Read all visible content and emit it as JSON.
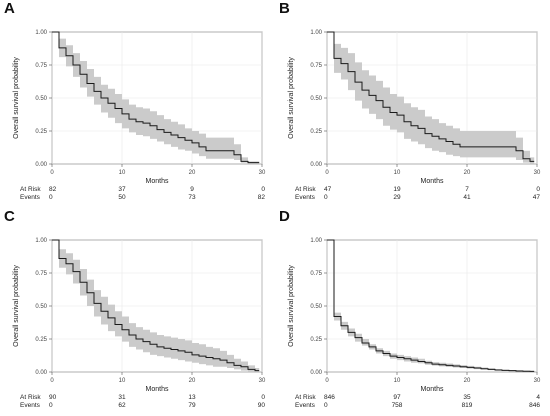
{
  "chart_data": [
    {
      "panel": "A",
      "type": "line",
      "xlabel": "Months",
      "ylabel": "Overall survival probability",
      "xlim": [
        0,
        30
      ],
      "ylim": [
        0,
        1
      ],
      "xticks": [
        "0",
        "10",
        "20",
        "30"
      ],
      "yticks": [
        "0.00",
        "0.25",
        "0.50",
        "0.75",
        "1.00"
      ],
      "grid": true,
      "x": [
        0,
        1,
        2,
        3,
        4,
        5,
        6,
        7,
        8,
        9,
        10,
        11,
        12,
        13,
        14,
        15,
        16,
        17,
        18,
        19,
        20,
        21,
        22,
        23,
        24,
        25,
        26,
        27,
        28,
        29
      ],
      "survival": [
        1.0,
        0.88,
        0.82,
        0.75,
        0.68,
        0.61,
        0.55,
        0.5,
        0.46,
        0.42,
        0.38,
        0.34,
        0.32,
        0.31,
        0.29,
        0.26,
        0.24,
        0.22,
        0.2,
        0.18,
        0.16,
        0.13,
        0.1,
        0.1,
        0.1,
        0.1,
        0.07,
        0.02,
        0.01,
        0.01
      ],
      "lower": [
        1.0,
        0.81,
        0.74,
        0.66,
        0.58,
        0.51,
        0.45,
        0.39,
        0.35,
        0.31,
        0.27,
        0.24,
        0.22,
        0.21,
        0.19,
        0.17,
        0.15,
        0.13,
        0.11,
        0.1,
        0.08,
        0.06,
        0.04,
        0.04,
        0.04,
        0.04,
        0.03,
        0.01,
        0.0,
        0.0
      ],
      "upper": [
        1.0,
        0.95,
        0.9,
        0.84,
        0.78,
        0.72,
        0.66,
        0.6,
        0.57,
        0.53,
        0.49,
        0.45,
        0.43,
        0.42,
        0.4,
        0.37,
        0.34,
        0.32,
        0.3,
        0.27,
        0.25,
        0.23,
        0.2,
        0.2,
        0.2,
        0.2,
        0.15,
        0.05,
        0.02,
        0.02
      ],
      "risk_table": {
        "rows": [
          "At Risk",
          "Events"
        ],
        "times": [
          0,
          10,
          20,
          30
        ],
        "at_risk": [
          "82",
          "37",
          "9",
          "0"
        ],
        "events": [
          "0",
          "50",
          "73",
          "82"
        ]
      }
    },
    {
      "panel": "B",
      "type": "line",
      "xlabel": "Months",
      "ylabel": "Overall survival probability",
      "xlim": [
        0,
        30
      ],
      "ylim": [
        0,
        1
      ],
      "xticks": [
        "0",
        "10",
        "20",
        "30"
      ],
      "yticks": [
        "0.00",
        "0.25",
        "0.50",
        "0.75",
        "1.00"
      ],
      "grid": true,
      "x": [
        0,
        1,
        2,
        3,
        4,
        5,
        6,
        7,
        8,
        9,
        10,
        11,
        12,
        13,
        14,
        15,
        16,
        17,
        18,
        19,
        20,
        21,
        22,
        23,
        24,
        25,
        26,
        27,
        28,
        29
      ],
      "survival": [
        1.0,
        0.8,
        0.76,
        0.7,
        0.62,
        0.56,
        0.52,
        0.48,
        0.43,
        0.39,
        0.37,
        0.32,
        0.29,
        0.27,
        0.23,
        0.21,
        0.19,
        0.17,
        0.15,
        0.13,
        0.13,
        0.13,
        0.13,
        0.13,
        0.13,
        0.13,
        0.13,
        0.1,
        0.04,
        0.02
      ],
      "lower": [
        1.0,
        0.69,
        0.64,
        0.56,
        0.48,
        0.42,
        0.38,
        0.34,
        0.29,
        0.26,
        0.24,
        0.19,
        0.17,
        0.15,
        0.12,
        0.1,
        0.09,
        0.07,
        0.06,
        0.05,
        0.05,
        0.05,
        0.05,
        0.05,
        0.05,
        0.05,
        0.05,
        0.03,
        0.01,
        0.0
      ],
      "upper": [
        1.0,
        0.91,
        0.88,
        0.84,
        0.77,
        0.71,
        0.67,
        0.63,
        0.58,
        0.53,
        0.51,
        0.46,
        0.43,
        0.41,
        0.36,
        0.34,
        0.31,
        0.29,
        0.27,
        0.25,
        0.25,
        0.25,
        0.25,
        0.25,
        0.25,
        0.25,
        0.25,
        0.2,
        0.1,
        0.05
      ],
      "risk_table": {
        "rows": [
          "At Risk",
          "Events"
        ],
        "times": [
          0,
          10,
          20,
          30
        ],
        "at_risk": [
          "47",
          "19",
          "7",
          "0"
        ],
        "events": [
          "0",
          "29",
          "41",
          "47"
        ]
      }
    },
    {
      "panel": "C",
      "type": "line",
      "xlabel": "Months",
      "ylabel": "Overall survival probability",
      "xlim": [
        0,
        30
      ],
      "ylim": [
        0,
        1
      ],
      "xticks": [
        "0",
        "10",
        "20",
        "30"
      ],
      "yticks": [
        "0.00",
        "0.25",
        "0.50",
        "0.75",
        "1.00"
      ],
      "grid": true,
      "x": [
        0,
        1,
        2,
        3,
        4,
        5,
        6,
        7,
        8,
        9,
        10,
        11,
        12,
        13,
        14,
        15,
        16,
        17,
        18,
        19,
        20,
        21,
        22,
        23,
        24,
        25,
        26,
        27,
        28,
        29
      ],
      "survival": [
        1.0,
        0.86,
        0.82,
        0.76,
        0.68,
        0.6,
        0.52,
        0.46,
        0.41,
        0.36,
        0.32,
        0.28,
        0.25,
        0.23,
        0.21,
        0.19,
        0.18,
        0.17,
        0.16,
        0.15,
        0.13,
        0.12,
        0.11,
        0.1,
        0.09,
        0.07,
        0.05,
        0.04,
        0.02,
        0.01
      ],
      "lower": [
        1.0,
        0.79,
        0.74,
        0.67,
        0.58,
        0.5,
        0.42,
        0.36,
        0.31,
        0.27,
        0.23,
        0.19,
        0.17,
        0.15,
        0.13,
        0.12,
        0.11,
        0.1,
        0.09,
        0.08,
        0.07,
        0.06,
        0.05,
        0.04,
        0.04,
        0.03,
        0.02,
        0.01,
        0.0,
        0.0
      ],
      "upper": [
        1.0,
        0.93,
        0.9,
        0.85,
        0.78,
        0.7,
        0.62,
        0.57,
        0.51,
        0.46,
        0.42,
        0.37,
        0.34,
        0.32,
        0.3,
        0.28,
        0.27,
        0.26,
        0.25,
        0.24,
        0.22,
        0.21,
        0.19,
        0.18,
        0.16,
        0.13,
        0.1,
        0.08,
        0.05,
        0.03
      ],
      "risk_table": {
        "rows": [
          "At Risk",
          "Events"
        ],
        "times": [
          0,
          10,
          20,
          30
        ],
        "at_risk": [
          "90",
          "31",
          "13",
          "0"
        ],
        "events": [
          "0",
          "62",
          "79",
          "90"
        ]
      }
    },
    {
      "panel": "D",
      "type": "line",
      "xlabel": "Months",
      "ylabel": "Overall survival probability",
      "xlim": [
        0,
        30
      ],
      "ylim": [
        0,
        1
      ],
      "xticks": [
        "0",
        "10",
        "20",
        "30"
      ],
      "yticks": [
        "0.00",
        "0.25",
        "0.50",
        "0.75",
        "1.00"
      ],
      "grid": true,
      "x": [
        0,
        1,
        2,
        3,
        4,
        5,
        6,
        7,
        8,
        9,
        10,
        11,
        12,
        13,
        14,
        15,
        16,
        17,
        18,
        19,
        20,
        21,
        22,
        23,
        24,
        25,
        26,
        27,
        28,
        29
      ],
      "survival": [
        1.0,
        0.42,
        0.35,
        0.3,
        0.26,
        0.22,
        0.19,
        0.16,
        0.14,
        0.12,
        0.11,
        0.1,
        0.09,
        0.08,
        0.07,
        0.06,
        0.055,
        0.05,
        0.045,
        0.04,
        0.035,
        0.03,
        0.025,
        0.02,
        0.015,
        0.012,
        0.01,
        0.008,
        0.006,
        0.005
      ],
      "lower": [
        1.0,
        0.39,
        0.32,
        0.27,
        0.23,
        0.2,
        0.17,
        0.14,
        0.12,
        0.1,
        0.09,
        0.08,
        0.07,
        0.065,
        0.055,
        0.048,
        0.043,
        0.038,
        0.034,
        0.03,
        0.026,
        0.022,
        0.018,
        0.014,
        0.01,
        0.008,
        0.006,
        0.004,
        0.003,
        0.002
      ],
      "upper": [
        1.0,
        0.45,
        0.38,
        0.33,
        0.29,
        0.25,
        0.21,
        0.18,
        0.16,
        0.14,
        0.13,
        0.12,
        0.11,
        0.1,
        0.085,
        0.075,
        0.07,
        0.064,
        0.058,
        0.052,
        0.046,
        0.04,
        0.034,
        0.028,
        0.022,
        0.018,
        0.015,
        0.013,
        0.01,
        0.009
      ],
      "risk_table": {
        "rows": [
          "At Risk",
          "Events"
        ],
        "times": [
          0,
          10,
          20,
          30
        ],
        "at_risk": [
          "846",
          "97",
          "35",
          "4"
        ],
        "events": [
          "0",
          "758",
          "819",
          "846"
        ]
      }
    }
  ],
  "colors": {
    "ci_band": "#c8c8c8",
    "survival_line": "#1a1a1a",
    "grid": "#e8e8e8",
    "panel_border": "#555555"
  }
}
